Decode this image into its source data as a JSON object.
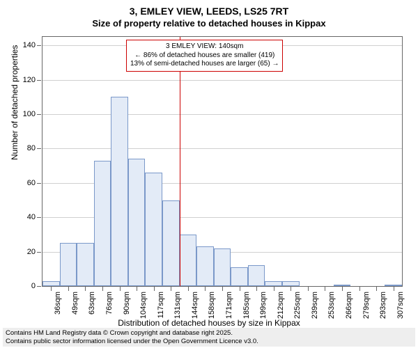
{
  "title_main": "3, EMLEY VIEW, LEEDS, LS25 7RT",
  "title_sub": "Size of property relative to detached houses in Kippax",
  "y_axis": {
    "title": "Number of detached properties",
    "ticks": [
      0,
      20,
      40,
      60,
      80,
      100,
      120,
      140
    ],
    "max": 145
  },
  "x_axis": {
    "title": "Distribution of detached houses by size in Kippax",
    "labels": [
      "36sqm",
      "49sqm",
      "63sqm",
      "76sqm",
      "90sqm",
      "104sqm",
      "117sqm",
      "131sqm",
      "144sqm",
      "158sqm",
      "171sqm",
      "185sqm",
      "199sqm",
      "212sqm",
      "225sqm",
      "239sqm",
      "253sqm",
      "266sqm",
      "279sqm",
      "293sqm",
      "307sqm"
    ]
  },
  "bars": {
    "values": [
      3,
      25,
      25,
      73,
      110,
      74,
      66,
      50,
      30,
      23,
      22,
      11,
      12,
      3,
      3,
      0,
      0,
      1,
      0,
      0,
      1
    ],
    "fill_color": "#e3ebf7",
    "border_color": "#7a98c9"
  },
  "reference_line": {
    "index": 8,
    "color": "#cc0000"
  },
  "annotation": {
    "line1": "3 EMLEY VIEW: 140sqm",
    "line2": "← 86% of detached houses are smaller (419)",
    "line3": "13% of semi-detached houses are larger (65) →",
    "border_color": "#cc0000",
    "background": "#ffffff"
  },
  "footer": {
    "line1": "Contains HM Land Registry data © Crown copyright and database right 2025.",
    "line2": "Contains public sector information licensed under the Open Government Licence v3.0."
  },
  "colors": {
    "background": "#ffffff",
    "grid": "#d0d0d0",
    "axis": "#666666",
    "footer_bg": "#eeeeee"
  }
}
